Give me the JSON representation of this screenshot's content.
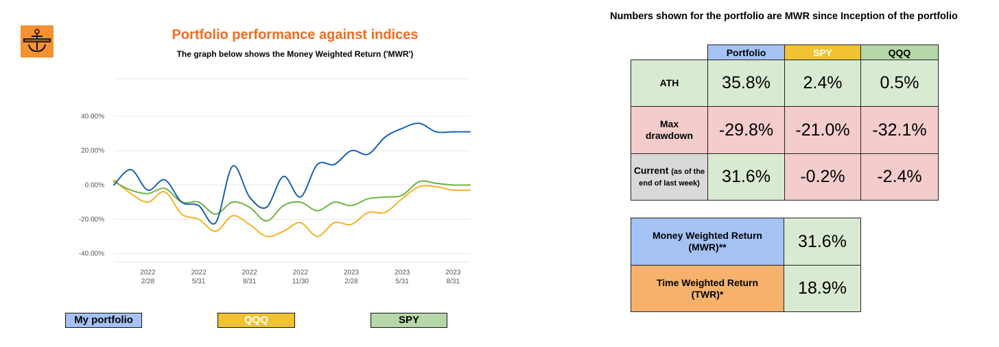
{
  "colors": {
    "title_orange": "#f26b1d",
    "portfolio_line": "#1660b3",
    "spy_line": "#6db33f",
    "qqq_line": "#f6b026",
    "blue_cell": "#a4c2f4",
    "yellow_cell": "#f1c232",
    "green_cell": "#b6d7a8",
    "light_green_cell": "#d9ead3",
    "light_red_cell": "#f4cccc",
    "grey_cell": "#d9d9d9",
    "orange_cell": "#f6b26b",
    "logo_orange": "#f49131"
  },
  "header": {
    "title": "Portfolio performance against indices",
    "subtitle": "The graph below shows the Money Weighted Return ('MWR')",
    "right_title": "Numbers shown for the portfolio are MWR since Inception of the portfolio",
    "logo_icon": "anchor-icon"
  },
  "chart_data": {
    "type": "line",
    "x": [
      "2021/12",
      "2022/01",
      "2022/02",
      "2022/03",
      "2022/04",
      "2022/05",
      "2022/06",
      "2022/07",
      "2022/08",
      "2022/09",
      "2022/10",
      "2022/11",
      "2022/12",
      "2023/01",
      "2023/02",
      "2023/03",
      "2023/04",
      "2023/05",
      "2023/06",
      "2023/07",
      "2023/08",
      "2023/09"
    ],
    "x_tick_labels": [
      {
        "year": "2022",
        "date": "2/28",
        "index": 2
      },
      {
        "year": "2022",
        "date": "5/31",
        "index": 5
      },
      {
        "year": "2022",
        "date": "8/31",
        "index": 8
      },
      {
        "year": "2022",
        "date": "11/30",
        "index": 11
      },
      {
        "year": "2023",
        "date": "2/28",
        "index": 14
      },
      {
        "year": "2023",
        "date": "5/31",
        "index": 17
      },
      {
        "year": "2023",
        "date": "8/31",
        "index": 20
      }
    ],
    "y_tick_labels": [
      "40.00%",
      "20.00%",
      "0.00%",
      "-20.00%",
      "-40.00%"
    ],
    "y_ticks": [
      40,
      20,
      0,
      -20,
      -40
    ],
    "ylim": [
      -45,
      62
    ],
    "xlim": [
      0,
      21
    ],
    "grid": true,
    "legend_position": "bottom",
    "series": [
      {
        "name": "My portfolio",
        "color": "#1660b3",
        "values": [
          0,
          9,
          -3,
          3,
          -10,
          -12,
          -22,
          11,
          -7,
          -13,
          5,
          -7,
          12,
          12,
          20,
          18,
          28,
          33,
          36,
          31,
          31,
          31
        ]
      },
      {
        "name": "QQQ",
        "color": "#f6b026",
        "values": [
          3,
          -5,
          -10,
          -4,
          -17,
          -20,
          -27,
          -18,
          -23,
          -30,
          -27,
          -22,
          -30,
          -22,
          -23,
          -16,
          -16,
          -8,
          -1,
          -1,
          -3,
          -3
        ]
      },
      {
        "name": "SPY",
        "color": "#6db33f",
        "values": [
          2,
          -3,
          -5,
          -2,
          -10,
          -10,
          -17,
          -10,
          -13,
          -21,
          -12,
          -10,
          -15,
          -10,
          -12,
          -8,
          -7,
          -6,
          2,
          1,
          0,
          0
        ]
      }
    ]
  },
  "legend": {
    "portfolio": "My portfolio",
    "qqq": "QQQ",
    "spy": "SPY"
  },
  "comparison_table": {
    "headers": [
      "Portfolio",
      "SPY",
      "QQQ"
    ],
    "rows": [
      {
        "label": "ATH",
        "values": [
          "35.8%",
          "2.4%",
          "0.5%"
        ]
      },
      {
        "label": "Max drawdown",
        "values": [
          "-29.8%",
          "-21.0%",
          "-32.1%"
        ]
      },
      {
        "label": "Current",
        "label_note": "(as of the end of last week)",
        "values": [
          "31.6%",
          "-0.2%",
          "-2.4%"
        ]
      }
    ]
  },
  "returns_table": {
    "rows": [
      {
        "label": "Money Weighted Return (MWR)**",
        "value": "31.6%"
      },
      {
        "label": "Time Weighted Return (TWR)*",
        "value": "18.9%"
      }
    ]
  }
}
